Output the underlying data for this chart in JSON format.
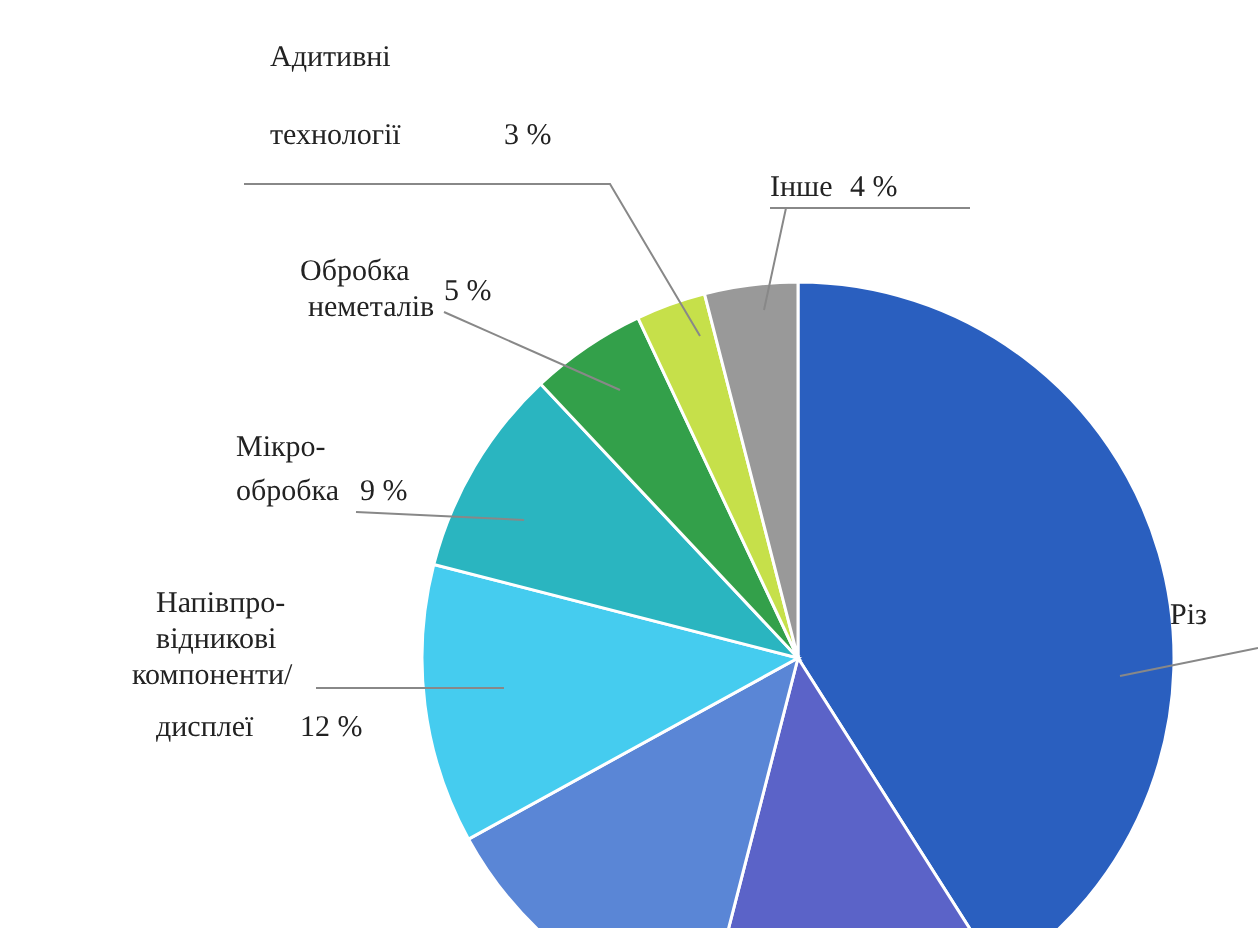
{
  "chart_data": {
    "type": "pie",
    "categories": [
      "Різ",
      null,
      null,
      "Напівпро-\nвідникові\nкомпоненти/\nдисплеї",
      "Мікро-\nобробка",
      "Обробка\nнеметалів",
      "Адитивні\nтехнології",
      "Інше"
    ],
    "values": [
      41,
      13,
      13,
      12,
      9,
      5,
      3,
      4
    ],
    "value_labels": [
      null,
      null,
      null,
      "12 %",
      "9 %",
      "5 %",
      "3 %",
      "4 %"
    ],
    "colors": [
      "#2a5fbf",
      "#5b63c8",
      "#5a86d6",
      "#45ccef",
      "#2ab5c0",
      "#33a04a",
      "#c6e04a",
      "#999999"
    ]
  }
}
